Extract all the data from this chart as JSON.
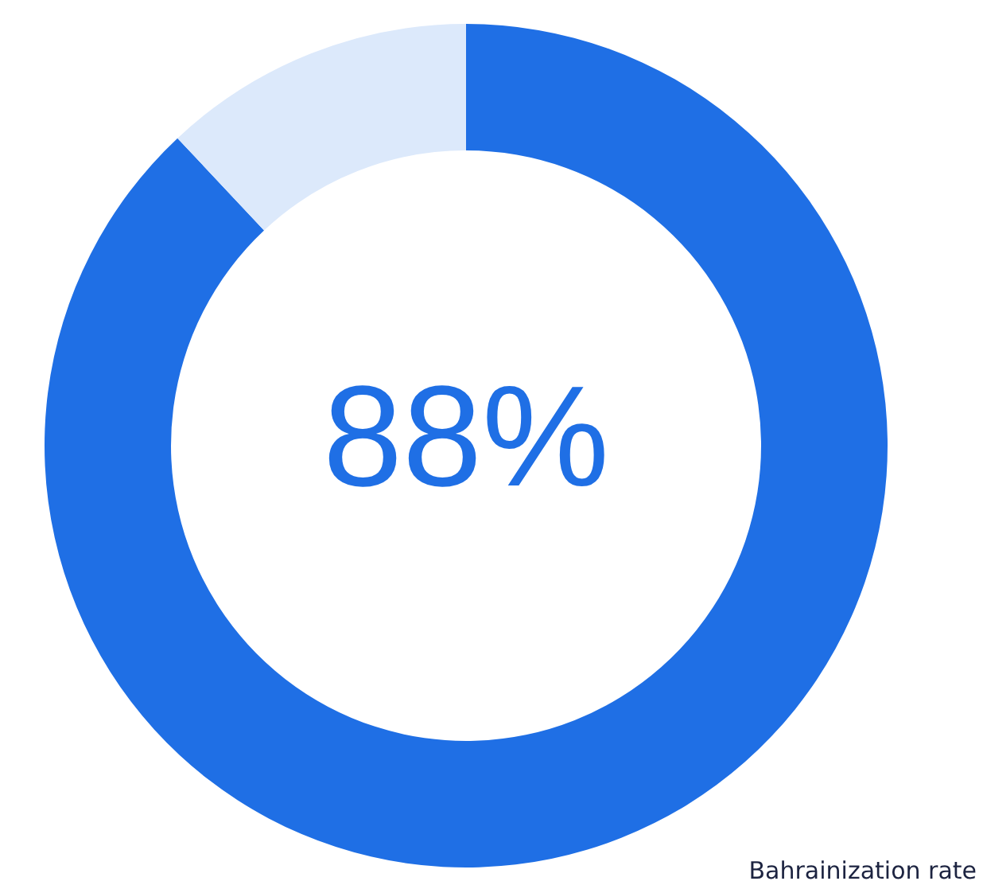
{
  "chart_data": {
    "type": "donut",
    "categories": [
      null,
      null
    ],
    "values": [
      88,
      12
    ],
    "colors": [
      "#1f6fe5",
      "#dce9fb"
    ],
    "value_labels": [
      "88%",
      null
    ],
    "annotations": [
      "Bahrainization rate"
    ],
    "legend": false
  }
}
